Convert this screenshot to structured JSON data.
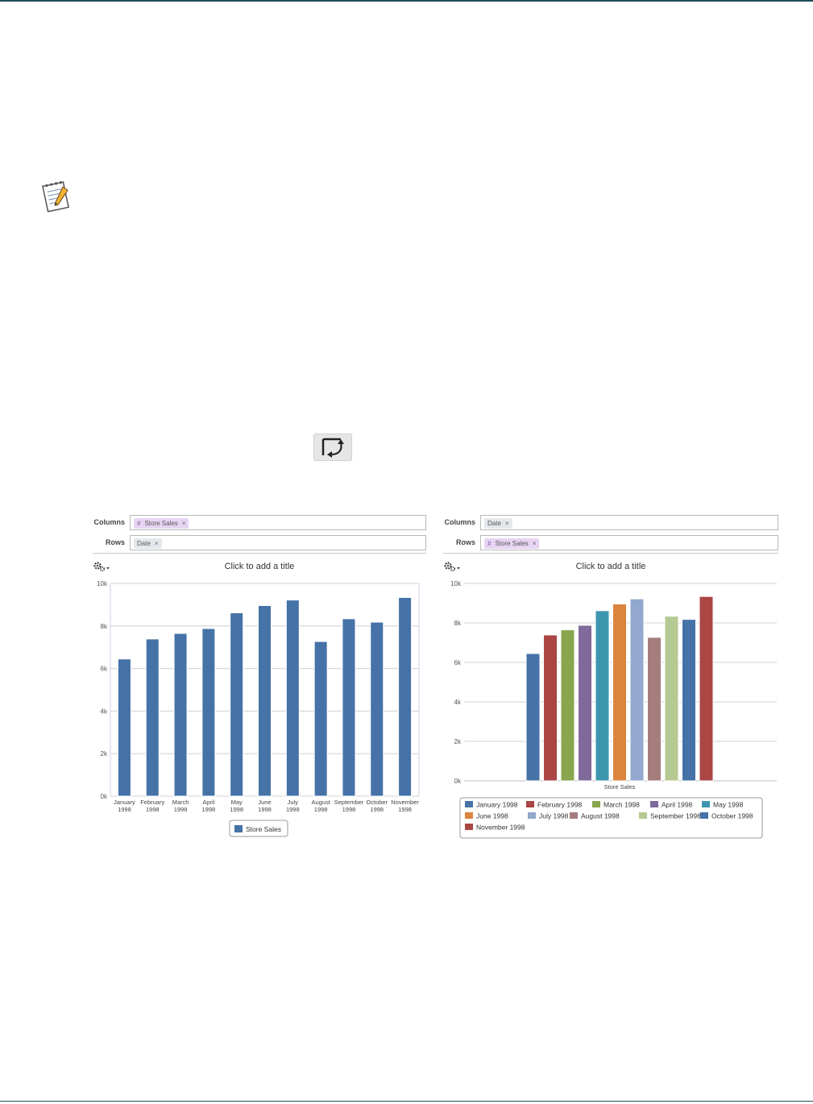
{
  "left_panel": {
    "columns_label": "Columns",
    "rows_label": "Rows",
    "columns_field": {
      "name": "Store Sales",
      "hash": "#"
    },
    "rows_field": {
      "name": "Date"
    },
    "title_placeholder": "Click to add a title"
  },
  "right_panel": {
    "columns_label": "Columns",
    "rows_label": "Rows",
    "columns_field": {
      "name": "Date"
    },
    "rows_field": {
      "name": "Store Sales",
      "hash": "#"
    },
    "title_placeholder": "Click to add a title"
  },
  "chart_data": [
    {
      "type": "bar",
      "categories": [
        "January 1998",
        "February 1998",
        "March 1998",
        "April 1998",
        "May 1998",
        "June 1998",
        "July 1998",
        "August 1998",
        "September 1998",
        "October 1998",
        "November 1998"
      ],
      "category_labels": [
        [
          "January",
          "1998"
        ],
        [
          "February",
          "1998"
        ],
        [
          "March",
          "1998"
        ],
        [
          "April",
          "1998"
        ],
        [
          "May",
          "1998"
        ],
        [
          "June",
          "1998"
        ],
        [
          "July",
          "1998"
        ],
        [
          "August",
          "1998"
        ],
        [
          "September",
          "1998"
        ],
        [
          "October",
          "1998"
        ],
        [
          "November",
          "1998"
        ]
      ],
      "series": [
        {
          "name": "Store Sales",
          "color": "#4572a7",
          "values": [
            6450,
            7390,
            7650,
            7880,
            8620,
            8960,
            9220,
            7270,
            8340,
            8180,
            9340
          ]
        }
      ],
      "ylim": [
        0,
        10000
      ],
      "yticks": [
        0,
        2000,
        4000,
        6000,
        8000,
        10000
      ],
      "ytick_labels": [
        "0k",
        "2k",
        "4k",
        "6k",
        "8k",
        "10k"
      ],
      "grid": true,
      "legend": "bottom"
    },
    {
      "type": "bar",
      "categories": [
        "Store Sales"
      ],
      "series": [
        {
          "name": "January 1998",
          "color": "#4572a7",
          "values": [
            6450
          ]
        },
        {
          "name": "February 1998",
          "color": "#aa4643",
          "values": [
            7390
          ]
        },
        {
          "name": "March 1998",
          "color": "#89a54e",
          "values": [
            7650
          ]
        },
        {
          "name": "April 1998",
          "color": "#80699b",
          "values": [
            7880
          ]
        },
        {
          "name": "May 1998",
          "color": "#3d96ae",
          "values": [
            8620
          ]
        },
        {
          "name": "June 1998",
          "color": "#db843d",
          "values": [
            8960
          ]
        },
        {
          "name": "July 1998",
          "color": "#92a8cd",
          "values": [
            9220
          ]
        },
        {
          "name": "August 1998",
          "color": "#a47d7c",
          "values": [
            7270
          ]
        },
        {
          "name": "September 1998",
          "color": "#b5ca92",
          "values": [
            8340
          ]
        },
        {
          "name": "October 1998",
          "color": "#4572a7",
          "values": [
            8180
          ]
        },
        {
          "name": "November 1998",
          "color": "#aa4643",
          "values": [
            9340
          ]
        }
      ],
      "ylim": [
        0,
        10000
      ],
      "yticks": [
        0,
        2000,
        4000,
        6000,
        8000,
        10000
      ],
      "ytick_labels": [
        "0k",
        "2k",
        "4k",
        "6k",
        "8k",
        "10k"
      ],
      "grid": true,
      "legend": "bottom"
    }
  ]
}
